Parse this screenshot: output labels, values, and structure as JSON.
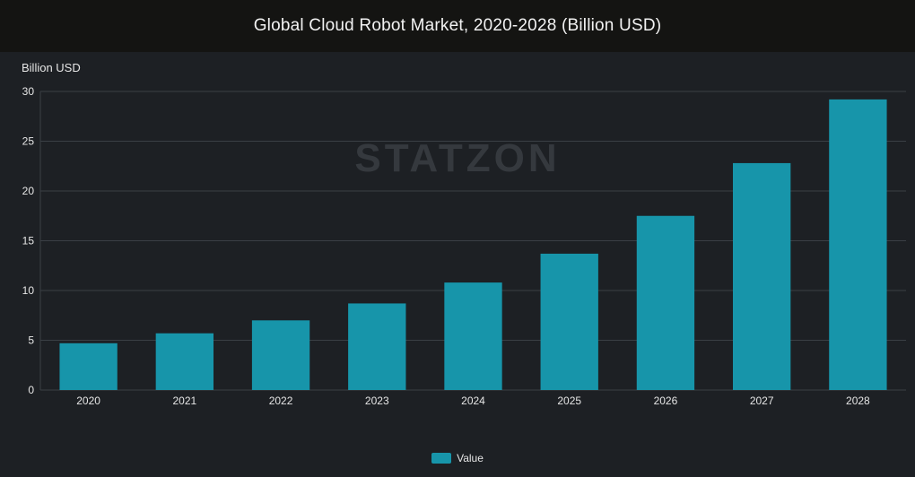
{
  "header": {
    "title": "Global Cloud Robot Market, 2020-2028 (Billion USD)"
  },
  "watermark": "STATZON",
  "legend": {
    "label": "Value",
    "color": "#1795aa"
  },
  "chart_data": {
    "type": "bar",
    "title": "Global Cloud Robot Market, 2020-2028 (Billion USD)",
    "ylabel": "Billion USD",
    "xlabel": "",
    "categories": [
      "2020",
      "2021",
      "2022",
      "2023",
      "2024",
      "2025",
      "2026",
      "2027",
      "2028"
    ],
    "series": [
      {
        "name": "Value",
        "values": [
          4.7,
          5.7,
          7.0,
          8.7,
          10.8,
          13.7,
          17.5,
          22.8,
          29.2
        ]
      }
    ],
    "ylim": [
      0,
      30
    ],
    "yticks": [
      0,
      5,
      10,
      15,
      20,
      25,
      30
    ],
    "grid": true,
    "legend_position": "bottom",
    "bar_color": "#1795aa",
    "grid_color": "#3a3f45"
  }
}
